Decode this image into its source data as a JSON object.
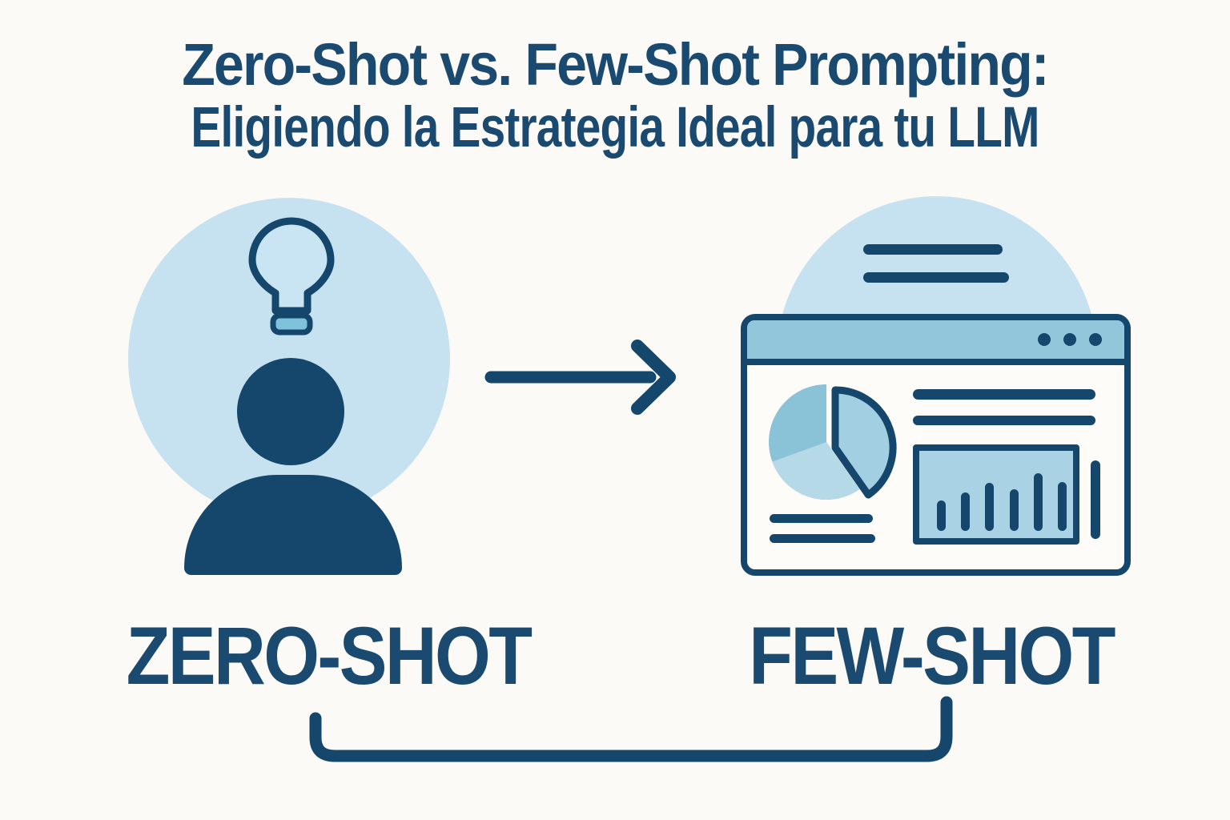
{
  "title": {
    "line1": "Zero-Shot vs. Few-Shot Prompting:",
    "line2": "Eligiendo la Estrategia Ideal para tu LLM"
  },
  "labels": {
    "left": "ZERO-SHOT",
    "right": "FEW-SHOT"
  },
  "icons": {
    "left": "person-with-lightbulb-icon",
    "middle": "right-arrow-icon",
    "right": "analytics-browser-window-icon"
  },
  "colors": {
    "background": "#fbfaf6",
    "navy": "#15466b",
    "text_navy": "#1b4a70",
    "light_blue_circle": "#c6e2f1",
    "mid_blue": "#92c6db",
    "pie_main": "#8ac2d8",
    "pie_light": "#b6d9e8",
    "pie_wedge": "#a3cfe2",
    "panel_fill": "#a9d3e5",
    "bulb_fill": "#c9e5f3",
    "bulb_base": "#7fc2dc"
  },
  "mini_bar_chart": {
    "values": [
      38,
      48,
      60,
      52,
      72,
      61
    ]
  }
}
